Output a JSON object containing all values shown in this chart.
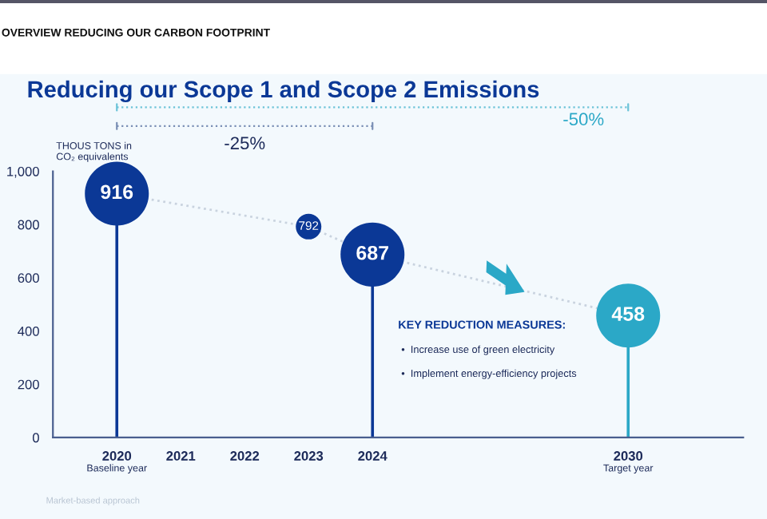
{
  "chart_data": {
    "type": "lollipop",
    "title": "Reducing our Scope 1 and Scope 2 Emissions",
    "ylabel": "THOUS TONS in\nCO₂ equivalents",
    "categories": [
      "2020",
      "2021",
      "2022",
      "2023",
      "2024",
      null,
      null,
      null,
      "2030"
    ],
    "series": [
      {
        "values": [
          916,
          null,
          null,
          792,
          687,
          null,
          null,
          null,
          458
        ],
        "colors": [
          "#0b3896",
          null,
          null,
          "#0b3896",
          "#0b3896",
          null,
          null,
          null,
          "#2ba8c7"
        ],
        "sizes": [
          1,
          null,
          null,
          0.16,
          1,
          null,
          null,
          null,
          1
        ]
      },
      {
        "type": "line",
        "color": "#c9d3df",
        "line_style": "dotted",
        "values": [
          916,
          null,
          null,
          792,
          687,
          null,
          null,
          null,
          458
        ],
        "value_labels": [
          null,
          null,
          null,
          null,
          null,
          null,
          null,
          null,
          null
        ]
      }
    ],
    "ylim": [
      0,
      1000
    ],
    "yticks": [
      0,
      200,
      400,
      600,
      800,
      {
        "value": 1000,
        "label": "1,000"
      }
    ],
    "data_labels": true,
    "grid": false,
    "annotations": [
      "OVERVIEW REDUCING OUR CARBON FOOTPRINT",
      "-25%",
      "-50%",
      "Baseline year",
      "Target year",
      "KEY REDUCTION MEASURES:",
      "•  Increase use of green electricity",
      "•  Implement energy-efficiency projects",
      "Market-based approach"
    ]
  }
}
